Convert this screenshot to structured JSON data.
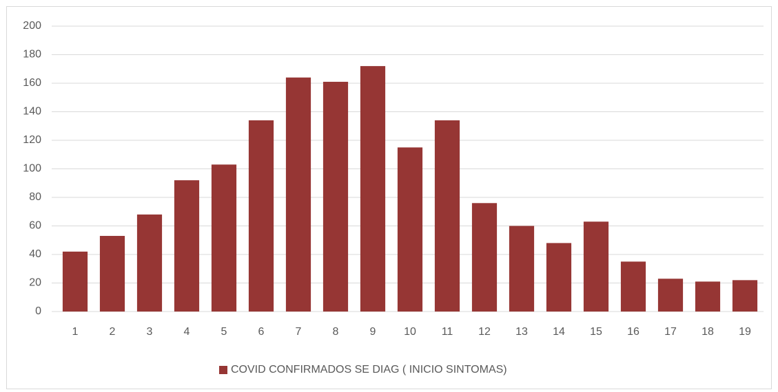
{
  "chart_data": {
    "type": "bar",
    "categories": [
      "1",
      "2",
      "3",
      "4",
      "5",
      "6",
      "7",
      "8",
      "9",
      "10",
      "11",
      "12",
      "13",
      "14",
      "15",
      "16",
      "17",
      "18",
      "19"
    ],
    "series": [
      {
        "name": "COVID CONFIRMADOS SE DIAG ( INICIO SINTOMAS)",
        "color": "#963634",
        "values": [
          42,
          53,
          68,
          92,
          103,
          134,
          164,
          161,
          172,
          115,
          134,
          76,
          60,
          48,
          63,
          35,
          23,
          21,
          22
        ]
      }
    ],
    "ylim": [
      0,
      200
    ],
    "yticks": [
      0,
      20,
      40,
      60,
      80,
      100,
      120,
      140,
      160,
      180,
      200
    ],
    "grid": true,
    "legend": "bottom"
  }
}
